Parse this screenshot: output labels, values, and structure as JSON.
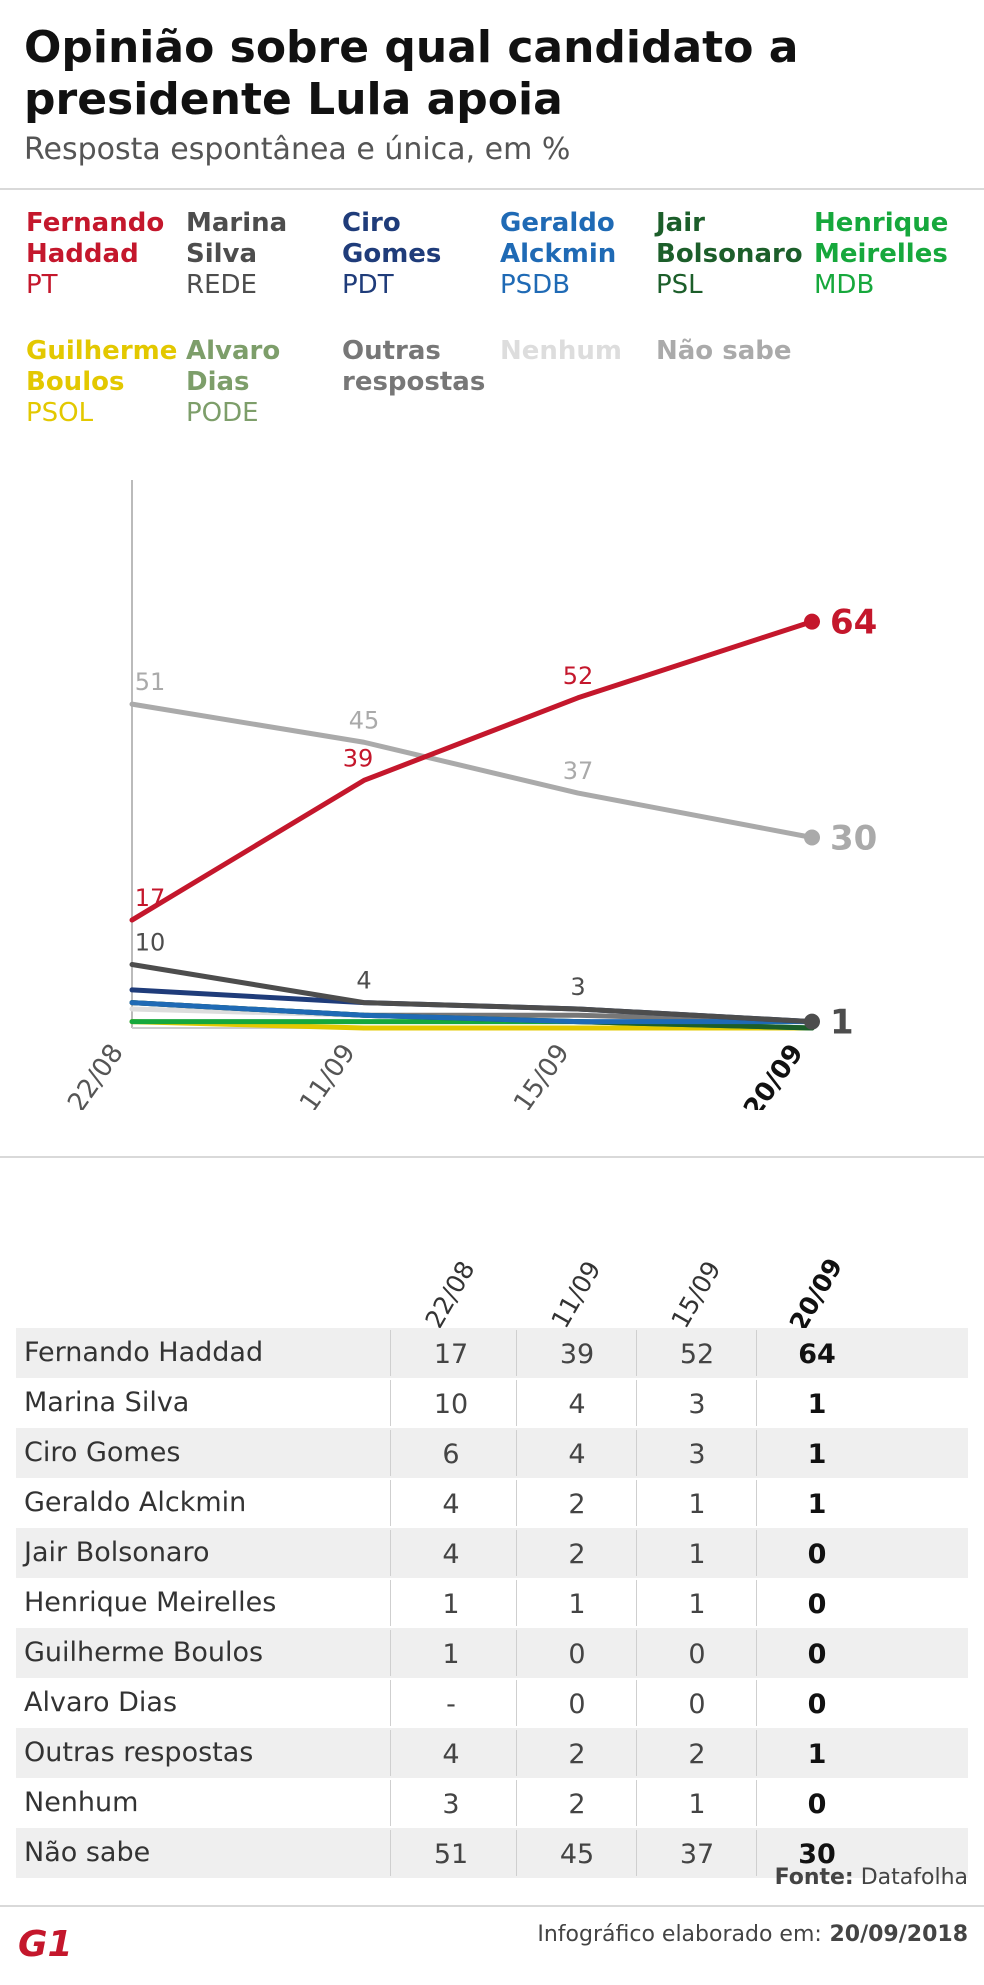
{
  "title": "Opinião sobre qual candidato a presidente Lula apoia",
  "subtitle": "Resposta espontânea e única, em %",
  "legend": [
    {
      "name": "Fernando Haddad",
      "party": "PT",
      "color": "#c4172c"
    },
    {
      "name": "Marina Silva",
      "party": "REDE",
      "color": "#4d4d4d"
    },
    {
      "name": "Ciro Gomes",
      "party": "PDT",
      "color": "#1f3c7a"
    },
    {
      "name": "Geraldo Alckmin",
      "party": "PSDB",
      "color": "#1f6ab5"
    },
    {
      "name": "Jair Bolsonaro",
      "party": "PSL",
      "color": "#1c5e2a"
    },
    {
      "name": "Henrique Meirelles",
      "party": "MDB",
      "color": "#16a83c"
    },
    {
      "name": "Guilherme Boulos",
      "party": "PSOL",
      "color": "#e3c800"
    },
    {
      "name": "Alvaro Dias",
      "party": "PODE",
      "color": "#7d9e6a"
    },
    {
      "name": "Outras respostas",
      "party": "",
      "color": "#777777"
    },
    {
      "name": "Nenhum",
      "party": "",
      "color": "#dddddd"
    },
    {
      "name": "Não sabe",
      "party": "",
      "color": "#aaaaaa"
    }
  ],
  "chart_data": {
    "type": "line",
    "x": [
      "22/08",
      "11/09",
      "15/09",
      "20/09"
    ],
    "ylim": [
      0,
      70
    ],
    "series": [
      {
        "name": "Fernando Haddad",
        "color": "#c4172c",
        "values": [
          17,
          39,
          52,
          64
        ]
      },
      {
        "name": "Marina Silva",
        "color": "#4d4d4d",
        "values": [
          10,
          4,
          3,
          1
        ]
      },
      {
        "name": "Ciro Gomes",
        "color": "#1f3c7a",
        "values": [
          6,
          4,
          3,
          1
        ]
      },
      {
        "name": "Geraldo Alckmin",
        "color": "#1f6ab5",
        "values": [
          4,
          2,
          1,
          1
        ]
      },
      {
        "name": "Jair Bolsonaro",
        "color": "#1c5e2a",
        "values": [
          4,
          2,
          1,
          0
        ]
      },
      {
        "name": "Henrique Meirelles",
        "color": "#16a83c",
        "values": [
          1,
          1,
          1,
          0
        ]
      },
      {
        "name": "Guilherme Boulos",
        "color": "#e3c800",
        "values": [
          1,
          0,
          0,
          0
        ]
      },
      {
        "name": "Alvaro Dias",
        "color": "#7d9e6a",
        "values": [
          null,
          0,
          0,
          0
        ]
      },
      {
        "name": "Outras respostas",
        "color": "#777777",
        "values": [
          4,
          2,
          2,
          1
        ]
      },
      {
        "name": "Nenhum",
        "color": "#dddddd",
        "values": [
          3,
          2,
          1,
          0
        ]
      },
      {
        "name": "Não sabe",
        "color": "#aaaaaa",
        "values": [
          51,
          45,
          37,
          30
        ]
      }
    ],
    "point_labels": [
      {
        "series": "Fernando Haddad",
        "labels": [
          "17",
          "39",
          "52",
          "64"
        ]
      },
      {
        "series": "Marina Silva",
        "labels": [
          "10",
          "4",
          "3",
          "1"
        ]
      },
      {
        "series": "Não sabe",
        "labels": [
          "51",
          "45",
          "37",
          "30"
        ]
      }
    ]
  },
  "table": {
    "headers": [
      "22/08",
      "11/09",
      "15/09",
      "20/09"
    ],
    "rows": [
      {
        "name": "Fernando Haddad",
        "values": [
          "17",
          "39",
          "52",
          "64"
        ]
      },
      {
        "name": "Marina Silva",
        "values": [
          "10",
          "4",
          "3",
          "1"
        ]
      },
      {
        "name": "Ciro Gomes",
        "values": [
          "6",
          "4",
          "3",
          "1"
        ]
      },
      {
        "name": "Geraldo Alckmin",
        "values": [
          "4",
          "2",
          "1",
          "1"
        ]
      },
      {
        "name": "Jair Bolsonaro",
        "values": [
          "4",
          "2",
          "1",
          "0"
        ]
      },
      {
        "name": "Henrique Meirelles",
        "values": [
          "1",
          "1",
          "1",
          "0"
        ]
      },
      {
        "name": "Guilherme Boulos",
        "values": [
          "1",
          "0",
          "0",
          "0"
        ]
      },
      {
        "name": "Alvaro Dias",
        "values": [
          "-",
          "0",
          "0",
          "0"
        ]
      },
      {
        "name": "Outras respostas",
        "values": [
          "4",
          "2",
          "2",
          "1"
        ]
      },
      {
        "name": "Nenhum",
        "values": [
          "3",
          "2",
          "1",
          "0"
        ]
      },
      {
        "name": "Não sabe",
        "values": [
          "51",
          "45",
          "37",
          "30"
        ]
      }
    ]
  },
  "footer": {
    "source_label": "Fonte:",
    "source": "Datafolha",
    "note_label": "Infográfico elaborado em:",
    "note_date": "20/09/2018",
    "logo_text": "G1",
    "logo_color": "#c4172c"
  }
}
